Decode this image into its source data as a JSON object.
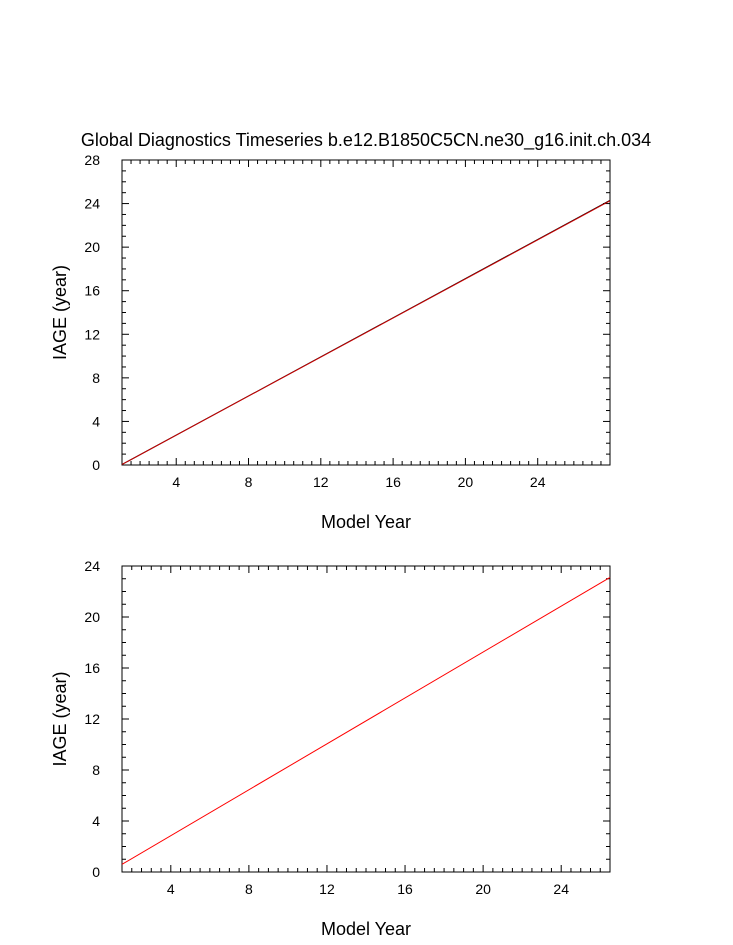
{
  "title": "Global Diagnostics Timeseries b.e12.B1850C5CN.ne30_g16.init.ch.034",
  "chart_data": [
    {
      "type": "line",
      "xlabel": "Model Year",
      "ylabel": "IAGE (year)",
      "xlim": [
        1,
        28
      ],
      "ylim": [
        0,
        28
      ],
      "xticks": [
        4,
        8,
        12,
        16,
        20,
        24
      ],
      "yticks": [
        0,
        4,
        8,
        12,
        16,
        20,
        24,
        28
      ],
      "series": [
        {
          "color": "#000000",
          "x": [
            1,
            28
          ],
          "y": [
            0.05,
            24.3
          ]
        },
        {
          "color": "#cc0000",
          "x": [
            1,
            28
          ],
          "y": [
            0.05,
            24.25
          ]
        }
      ]
    },
    {
      "type": "line",
      "xlabel": "Model Year",
      "ylabel": "IAGE (year)",
      "xlim": [
        1.5,
        26.5
      ],
      "ylim": [
        0,
        24
      ],
      "xticks": [
        4,
        8,
        12,
        16,
        20,
        24
      ],
      "yticks": [
        0,
        4,
        8,
        12,
        16,
        20,
        24
      ],
      "series": [
        {
          "color": "#ff0000",
          "x": [
            1.5,
            26.5
          ],
          "y": [
            0.6,
            23.1
          ]
        }
      ]
    }
  ]
}
